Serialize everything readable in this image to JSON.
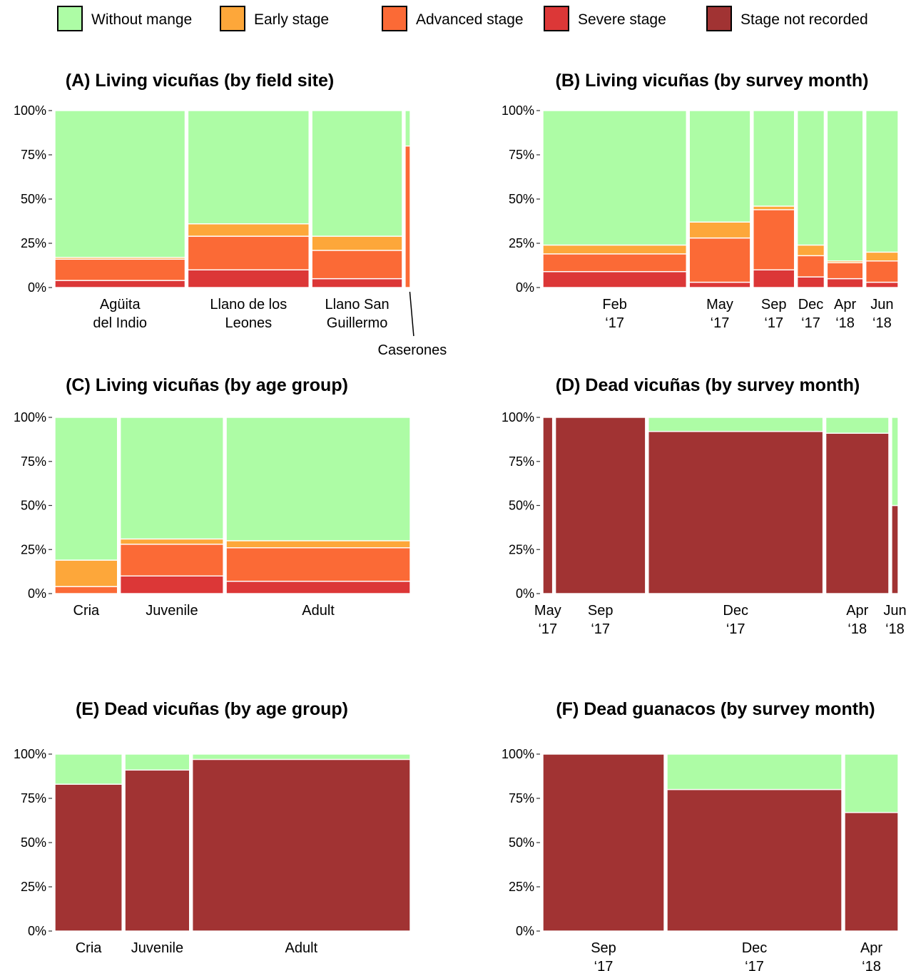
{
  "legend": [
    {
      "key": "none",
      "label": "Without mange",
      "color": "#adfca5"
    },
    {
      "key": "early",
      "label": "Early stage",
      "color": "#fda73a"
    },
    {
      "key": "advanced",
      "label": "Advanced stage",
      "color": "#fb6a36"
    },
    {
      "key": "severe",
      "label": "Severe stage",
      "color": "#dc3737"
    },
    {
      "key": "not_recorded",
      "label": "Stage not recorded",
      "color": "#a13333"
    }
  ],
  "chart_data": [
    {
      "type": "bar",
      "title": "(A) Living vicuñas (by field site)",
      "y_ticks": [
        "0%",
        "25%",
        "50%",
        "75%",
        "100%"
      ],
      "ylim": [
        0,
        100
      ],
      "categories": [
        {
          "label": [
            "Agüita",
            "del Indio"
          ],
          "width_share": 0.36
        },
        {
          "label": [
            "Llano de los",
            "Leones"
          ],
          "width_share": 0.335
        },
        {
          "label": [
            "Llano San",
            "Guillermo"
          ],
          "width_share": 0.25
        },
        {
          "label": [
            "Caserones"
          ],
          "width_share": 0.014,
          "callout": true
        }
      ],
      "series": [
        {
          "key": "severe",
          "values": [
            4,
            10,
            5,
            0
          ]
        },
        {
          "key": "advanced",
          "values": [
            12,
            19,
            16,
            80
          ]
        },
        {
          "key": "early",
          "values": [
            1,
            7,
            8,
            0
          ]
        },
        {
          "key": "none",
          "values": [
            83,
            64,
            71,
            20
          ]
        }
      ]
    },
    {
      "type": "bar",
      "title": "(B) Living vicuñas (by survey month)",
      "y_ticks": [
        "0%",
        "25%",
        "50%",
        "75%",
        "100%"
      ],
      "ylim": [
        0,
        100
      ],
      "categories": [
        {
          "label": [
            "Feb",
            "‘17"
          ],
          "width_share": 0.4
        },
        {
          "label": [
            "May",
            "‘17"
          ],
          "width_share": 0.17
        },
        {
          "label": [
            "Sep",
            "‘17"
          ],
          "width_share": 0.115
        },
        {
          "label": [
            "Dec",
            "‘17"
          ],
          "width_share": 0.075
        },
        {
          "label": [
            "Apr",
            "‘18"
          ],
          "width_share": 0.1
        },
        {
          "label": [
            "Jun",
            "‘18"
          ],
          "width_share": 0.09
        }
      ],
      "series": [
        {
          "key": "severe",
          "values": [
            9,
            3,
            10,
            6,
            5,
            3
          ]
        },
        {
          "key": "advanced",
          "values": [
            10,
            25,
            34,
            12,
            9,
            12
          ]
        },
        {
          "key": "early",
          "values": [
            5,
            9,
            2,
            6,
            1,
            5
          ]
        },
        {
          "key": "none",
          "values": [
            76,
            63,
            54,
            76,
            85,
            80
          ]
        }
      ]
    },
    {
      "type": "bar",
      "title": "(C) Living vicuñas (by age group)",
      "y_ticks": [
        "0%",
        "25%",
        "50%",
        "75%",
        "100%"
      ],
      "ylim": [
        0,
        100
      ],
      "categories": [
        {
          "label": [
            "Cria"
          ],
          "width_share": 0.17
        },
        {
          "label": [
            "Juvenile"
          ],
          "width_share": 0.28
        },
        {
          "label": [
            "Adult"
          ],
          "width_share": 0.5
        }
      ],
      "series": [
        {
          "key": "severe",
          "values": [
            0,
            10,
            7
          ]
        },
        {
          "key": "advanced",
          "values": [
            4,
            18,
            19
          ]
        },
        {
          "key": "early",
          "values": [
            15,
            3,
            4
          ]
        },
        {
          "key": "none",
          "values": [
            81,
            69,
            70
          ]
        }
      ]
    },
    {
      "type": "bar",
      "title": "(D) Dead vicuñas (by survey month)",
      "y_ticks": [
        "0%",
        "25%",
        "50%",
        "75%",
        "100%"
      ],
      "ylim": [
        0,
        100
      ],
      "categories": [
        {
          "label": [
            "May",
            "‘17"
          ],
          "width_share": 0.027
        },
        {
          "label": [
            "Sep",
            "‘17"
          ],
          "width_share": 0.25
        },
        {
          "label": [
            "Dec",
            "‘17"
          ],
          "width_share": 0.485
        },
        {
          "label": [
            "Apr",
            "‘18"
          ],
          "width_share": 0.175
        },
        {
          "label": [
            "Jun",
            "‘18"
          ],
          "width_share": 0.018
        }
      ],
      "series": [
        {
          "key": "not_recorded",
          "values": [
            100,
            100,
            92,
            91,
            50
          ]
        },
        {
          "key": "none",
          "values": [
            0,
            0,
            8,
            9,
            50
          ]
        }
      ]
    },
    {
      "type": "bar",
      "title": "(E) Dead vicuñas (by age group)",
      "y_ticks": [
        "0%",
        "25%",
        "50%",
        "75%",
        "100%"
      ],
      "ylim": [
        0,
        100
      ],
      "categories": [
        {
          "label": [
            "Cria"
          ],
          "width_share": 0.185
        },
        {
          "label": [
            "Juvenile"
          ],
          "width_share": 0.178
        },
        {
          "label": [
            "Adult"
          ],
          "width_share": 0.6
        }
      ],
      "series": [
        {
          "key": "not_recorded",
          "values": [
            83,
            91,
            97
          ]
        },
        {
          "key": "none",
          "values": [
            17,
            9,
            3
          ]
        }
      ]
    },
    {
      "type": "bar",
      "title": "(F) Dead guanacos (by survey month)",
      "y_ticks": [
        "0%",
        "25%",
        "50%",
        "75%",
        "100%"
      ],
      "ylim": [
        0,
        100
      ],
      "categories": [
        {
          "label": [
            "Sep",
            "‘17"
          ],
          "width_share": 0.34
        },
        {
          "label": [
            "Dec",
            "‘17"
          ],
          "width_share": 0.49
        },
        {
          "label": [
            "Apr",
            "‘18"
          ],
          "width_share": 0.15
        }
      ],
      "series": [
        {
          "key": "not_recorded",
          "values": [
            100,
            80,
            67
          ]
        },
        {
          "key": "none",
          "values": [
            0,
            20,
            33
          ]
        }
      ]
    }
  ]
}
